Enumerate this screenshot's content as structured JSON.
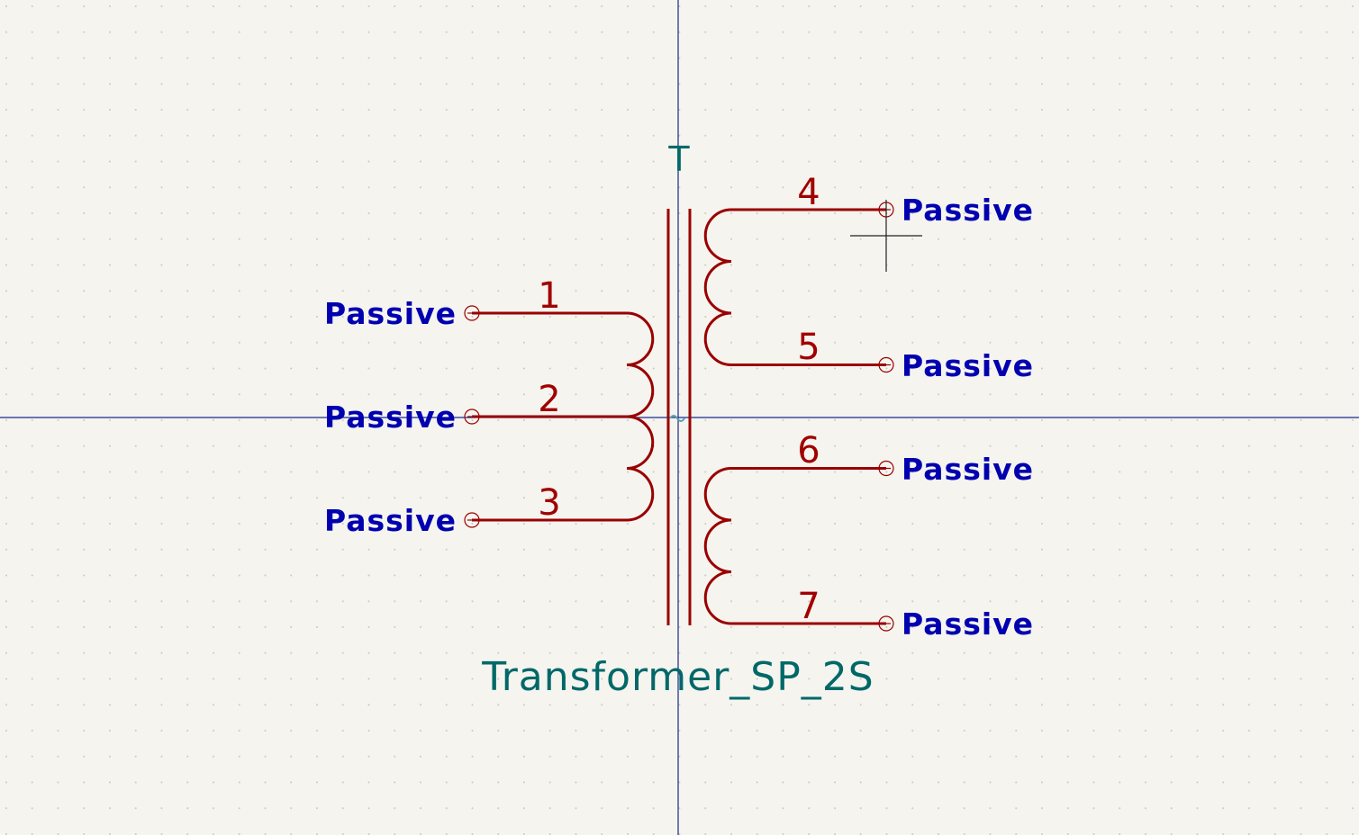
{
  "symbol": {
    "reference": "T",
    "value": "Transformer_SP_2S"
  },
  "primary_pins": [
    {
      "number": "1",
      "type": "Passive"
    },
    {
      "number": "2",
      "type": "Passive"
    },
    {
      "number": "3",
      "type": "Passive"
    }
  ],
  "secondary_pins": [
    {
      "number": "4",
      "type": "Passive"
    },
    {
      "number": "5",
      "type": "Passive"
    },
    {
      "number": "6",
      "type": "Passive"
    },
    {
      "number": "7",
      "type": "Passive"
    }
  ],
  "colors": {
    "background": "#f5f4ef",
    "grid_dot": "#c9c8c2",
    "body_lines": "#9a0000",
    "pin_number": "#a00000",
    "pin_type": "#0000b0",
    "field_text": "#006868",
    "axis": "#1a2a8a"
  }
}
